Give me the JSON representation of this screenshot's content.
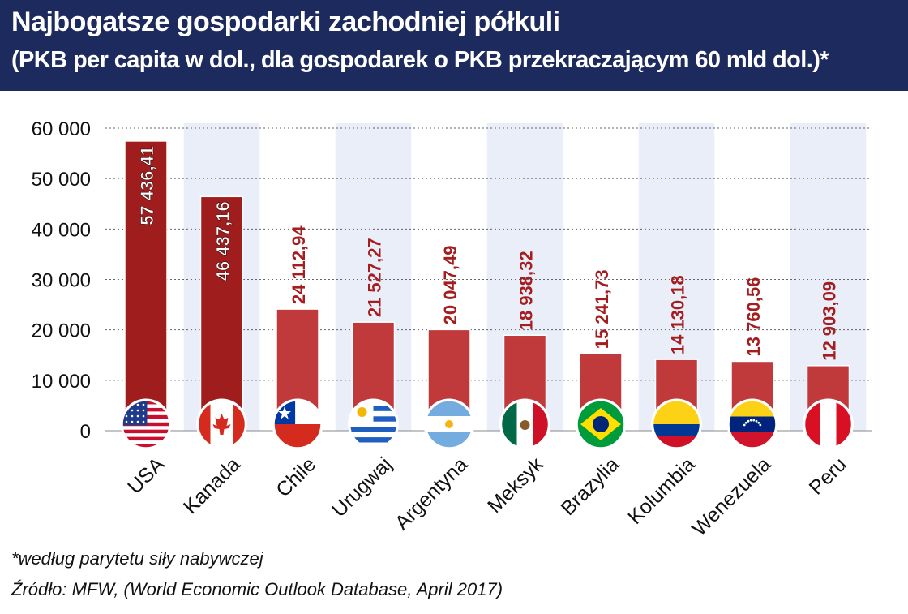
{
  "header": {
    "title": "Najbogatsze gospodarki zachodniej półkuli",
    "subtitle": "(PKB per capita w dol., dla gospodarek o PKB przekraczającym 60 mld dol.)*"
  },
  "footer": {
    "note": "*według parytetu siły nabywczej",
    "source": "Źródło: MFW, (World Economic Outlook Database, April 2017)"
  },
  "colors": {
    "header_bg": "#1d2a5e",
    "bar_top": "#a01d1d",
    "bar_regular": "#c0393b",
    "label_red": "#a51d1f",
    "stripe": "#e9eef8"
  },
  "chart_data": {
    "type": "bar",
    "categories": [
      "USA",
      "Kanada",
      "Chile",
      "Urugwaj",
      "Argentyna",
      "Meksyk",
      "Brazylia",
      "Kolumbia",
      "Wenezuela",
      "Peru"
    ],
    "values": [
      57436.41,
      46437.16,
      24112.94,
      21527.27,
      20047.49,
      18938.32,
      15241.73,
      14130.18,
      13760.56,
      12903.09
    ],
    "value_labels": [
      "57 436,41",
      "46 437,16",
      "24 112,94",
      "21 527,27",
      "20 047,49",
      "18 938,32",
      "15 241,73",
      "14 130,18",
      "13 760,56",
      "12 903,09"
    ],
    "flag_icons": [
      "usa-flag-icon",
      "canada-flag-icon",
      "chile-flag-icon",
      "uruguay-flag-icon",
      "argentina-flag-icon",
      "mexico-flag-icon",
      "brazil-flag-icon",
      "colombia-flag-icon",
      "venezuela-flag-icon",
      "peru-flag-icon"
    ],
    "y_ticks": [
      0,
      10000,
      20000,
      30000,
      40000,
      50000,
      60000
    ],
    "y_tick_labels": [
      "0",
      "10 000",
      "20 000",
      "30 000",
      "40 000",
      "50 000",
      "60 000"
    ],
    "ylim": [
      0,
      60000
    ],
    "grid": true,
    "legend": "none",
    "xlabel": "",
    "ylabel": ""
  }
}
